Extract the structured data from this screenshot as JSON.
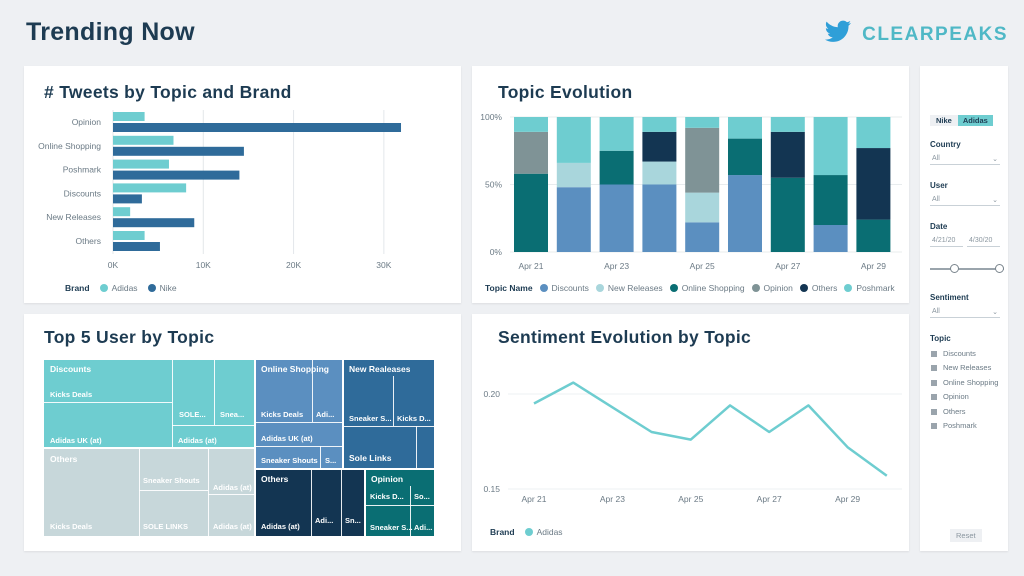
{
  "header": {
    "title": "Trending Now",
    "logo_text": "CLEARPEAKS",
    "logo_icon": "twitter-bird-icon"
  },
  "colors": {
    "adidas": "#6ecdd0",
    "nike": "#2f6b9a",
    "discounts": "#5b8fc0",
    "new_releases": "#a9d6dc",
    "online_shopping": "#0a6e73",
    "opinion": "#7f9396",
    "others": "#133552",
    "poshmark": "#6ecdd0"
  },
  "panels": {
    "tweets": {
      "title": "# Tweets by Topic and Brand",
      "legend_label": "Brand",
      "legend": [
        "Adidas",
        "Nike"
      ]
    },
    "evolution": {
      "title": "Topic Evolution",
      "legend_label": "Topic Name",
      "legend": [
        "Discounts",
        "New Releases",
        "Online Shopping",
        "Opinion",
        "Others",
        "Poshmark"
      ]
    },
    "treemap": {
      "title": "Top 5 User by Topic"
    },
    "sentiment": {
      "title": "Sentiment Evolution by Topic",
      "legend_label": "Brand",
      "legend": [
        "Adidas"
      ]
    }
  },
  "chart_data": [
    {
      "type": "bar",
      "title": "# Tweets by Topic and Brand",
      "categories": [
        "Opinion",
        "Online Shopping",
        "Poshmark",
        "Discounts",
        "New Releases",
        "Others"
      ],
      "series": [
        {
          "name": "Adidas",
          "values": [
            3500,
            6700,
            6200,
            8100,
            1900,
            3500
          ]
        },
        {
          "name": "Nike",
          "values": [
            31900,
            14500,
            14000,
            3200,
            9000,
            5200
          ]
        }
      ],
      "xticks": [
        "0K",
        "10K",
        "20K",
        "30K"
      ],
      "xlim": [
        0,
        35000
      ],
      "legend": "bottom"
    },
    {
      "type": "bar",
      "stacked": true,
      "title": "Topic Evolution",
      "categories": [
        "Apr 21",
        "Apr 22",
        "Apr 23",
        "Apr 24",
        "Apr 25",
        "Apr 26",
        "Apr 27",
        "Apr 28",
        "Apr 29",
        "Apr 30"
      ],
      "xtick_labels": [
        "Apr 21",
        "Apr 23",
        "Apr 25",
        "Apr 27",
        "Apr 29"
      ],
      "yticks": [
        "0%",
        "50%",
        "100%"
      ],
      "series": [
        {
          "name": "Discounts",
          "values": [
            0,
            48,
            50,
            50,
            22,
            57,
            0,
            20,
            0,
            0
          ]
        },
        {
          "name": "New Releases",
          "values": [
            0,
            18,
            0,
            17,
            22,
            0,
            0,
            0,
            0,
            0
          ]
        },
        {
          "name": "Online Shopping",
          "values": [
            58,
            0,
            25,
            0,
            0,
            27,
            55,
            37,
            24,
            0
          ]
        },
        {
          "name": "Opinion",
          "values": [
            31,
            0,
            0,
            0,
            48,
            0,
            0,
            0,
            0,
            0
          ]
        },
        {
          "name": "Others",
          "values": [
            0,
            0,
            0,
            22,
            0,
            0,
            34,
            0,
            53,
            0
          ]
        },
        {
          "name": "Poshmark",
          "values": [
            11,
            34,
            25,
            11,
            8,
            16,
            11,
            43,
            23,
            0
          ]
        }
      ],
      "legend": "bottom"
    },
    {
      "type": "treemap",
      "title": "Top 5 User by Topic",
      "groups": [
        {
          "name": "Discounts",
          "users": [
            "Kicks Deals",
            "Adidas UK (at)",
            "SOLE...",
            "Snea...",
            "Adidas (at)"
          ]
        },
        {
          "name": "Online Shopping",
          "users": [
            "Kicks Deals",
            "Adi...",
            "Adidas UK (at)",
            "Sneaker Shouts",
            "S..."
          ]
        },
        {
          "name": "New Realeases",
          "users": [
            "Sneaker S...",
            "Kicks D...",
            "Sole Links"
          ]
        },
        {
          "name": "Others",
          "users": [
            "Sneaker Shouts",
            "Adidas (at)",
            "Kicks Deals",
            "SOLE LINKS",
            "Adidas (at)"
          ]
        },
        {
          "name": "Others",
          "users": [
            "Adidas (at)",
            "Adi...",
            "Sn..."
          ]
        },
        {
          "name": "Opinion",
          "users": [
            "Kicks D...",
            "So...",
            "Sneaker S...",
            "Adi..."
          ]
        }
      ]
    },
    {
      "type": "line",
      "title": "Sentiment Evolution by Topic",
      "x": [
        "Apr 21",
        "Apr 22",
        "Apr 23",
        "Apr 24",
        "Apr 25",
        "Apr 26",
        "Apr 27",
        "Apr 28",
        "Apr 29",
        "Apr 30"
      ],
      "xtick_labels": [
        "Apr 21",
        "Apr 23",
        "Apr 25",
        "Apr 27",
        "Apr 29"
      ],
      "series": [
        {
          "name": "Adidas",
          "values": [
            0.195,
            0.206,
            0.193,
            0.18,
            0.176,
            0.194,
            0.18,
            0.194,
            0.172,
            0.157
          ]
        }
      ],
      "yticks": [
        "0.15",
        "0.20"
      ],
      "ylim": [
        0.15,
        0.215
      ],
      "legend": "bottom"
    }
  ],
  "filters": {
    "brand_options": [
      "Nike",
      "Adidas"
    ],
    "country_label": "Country",
    "country_value": "All",
    "user_label": "User",
    "user_value": "All",
    "date_label": "Date",
    "date_from": "4/21/20",
    "date_to": "4/30/20",
    "sentiment_label": "Sentiment",
    "sentiment_value": "All",
    "topic_label": "Topic",
    "topics": [
      "Discounts",
      "New Releases",
      "Online Shopping",
      "Opinion",
      "Others",
      "Poshmark"
    ],
    "reset_label": "Reset"
  }
}
